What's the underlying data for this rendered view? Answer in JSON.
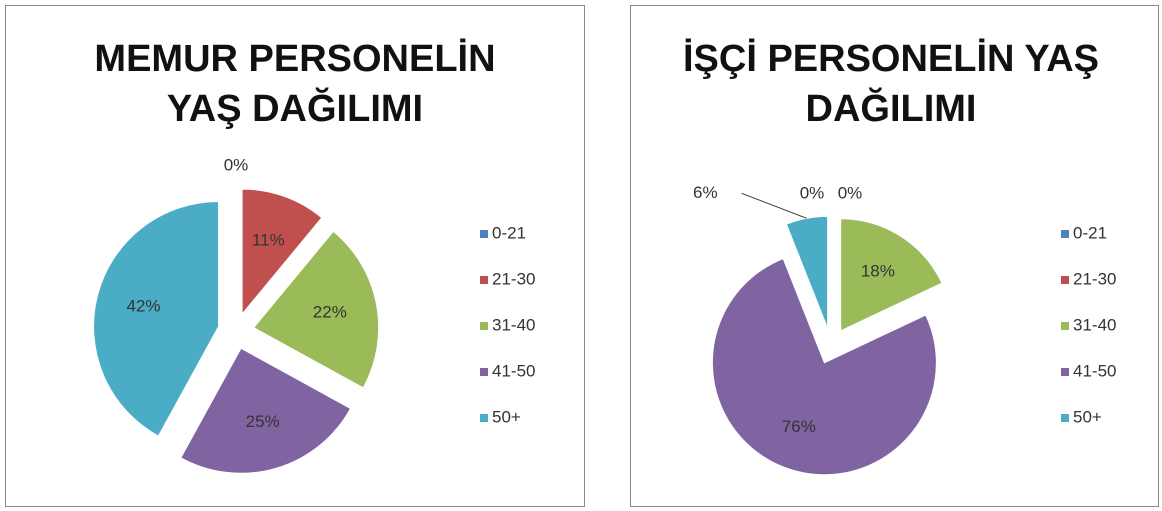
{
  "chart_data": [
    {
      "type": "pie",
      "title": "MEMUR PERSONELİN YAŞ DAĞILIMI",
      "categories": [
        "0-21",
        "21-30",
        "31-40",
        "41-50",
        "50+"
      ],
      "values": [
        0,
        11,
        22,
        25,
        42
      ],
      "colors": [
        "#4f81bd",
        "#c0504d",
        "#9bbb59",
        "#8064a2",
        "#4bacc6"
      ],
      "legend": "right"
    },
    {
      "type": "pie",
      "title": "İŞÇİ PERSONELİN YAŞ DAĞILIMI",
      "categories": [
        "0-21",
        "21-30",
        "31-40",
        "41-50",
        "50+"
      ],
      "values": [
        0,
        0,
        18,
        76,
        6
      ],
      "colors": [
        "#4f81bd",
        "#c0504d",
        "#9bbb59",
        "#8064a2",
        "#4bacc6"
      ],
      "legend": "right"
    }
  ]
}
